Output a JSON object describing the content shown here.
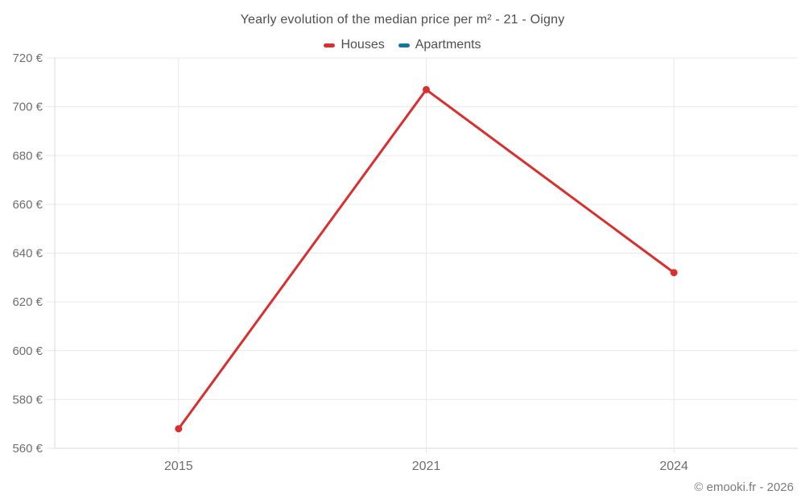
{
  "page": {
    "copyright": "© emooki.fr - 2026"
  },
  "chart_data": {
    "type": "line",
    "title": "Yearly evolution of the median price per m² - 21 - Oigny",
    "categories": [
      "2015",
      "2021",
      "2024"
    ],
    "series": [
      {
        "name": "Houses",
        "color": "#d92f2f",
        "values": [
          568,
          707,
          632
        ]
      },
      {
        "name": "Apartments",
        "color": "#1274a5",
        "values": []
      }
    ],
    "ylim": [
      560,
      720
    ],
    "ytick_step": 20,
    "ytick_suffix": " €",
    "grid": true,
    "legend_position": "top",
    "marker": "circle",
    "colors": {
      "grid": "#e9e9e9",
      "axis": "#d9d9d9",
      "tick_label": "#6e6e6e",
      "title_text": "#4e4e4e",
      "copyright_text": "#7a7a7a"
    }
  }
}
